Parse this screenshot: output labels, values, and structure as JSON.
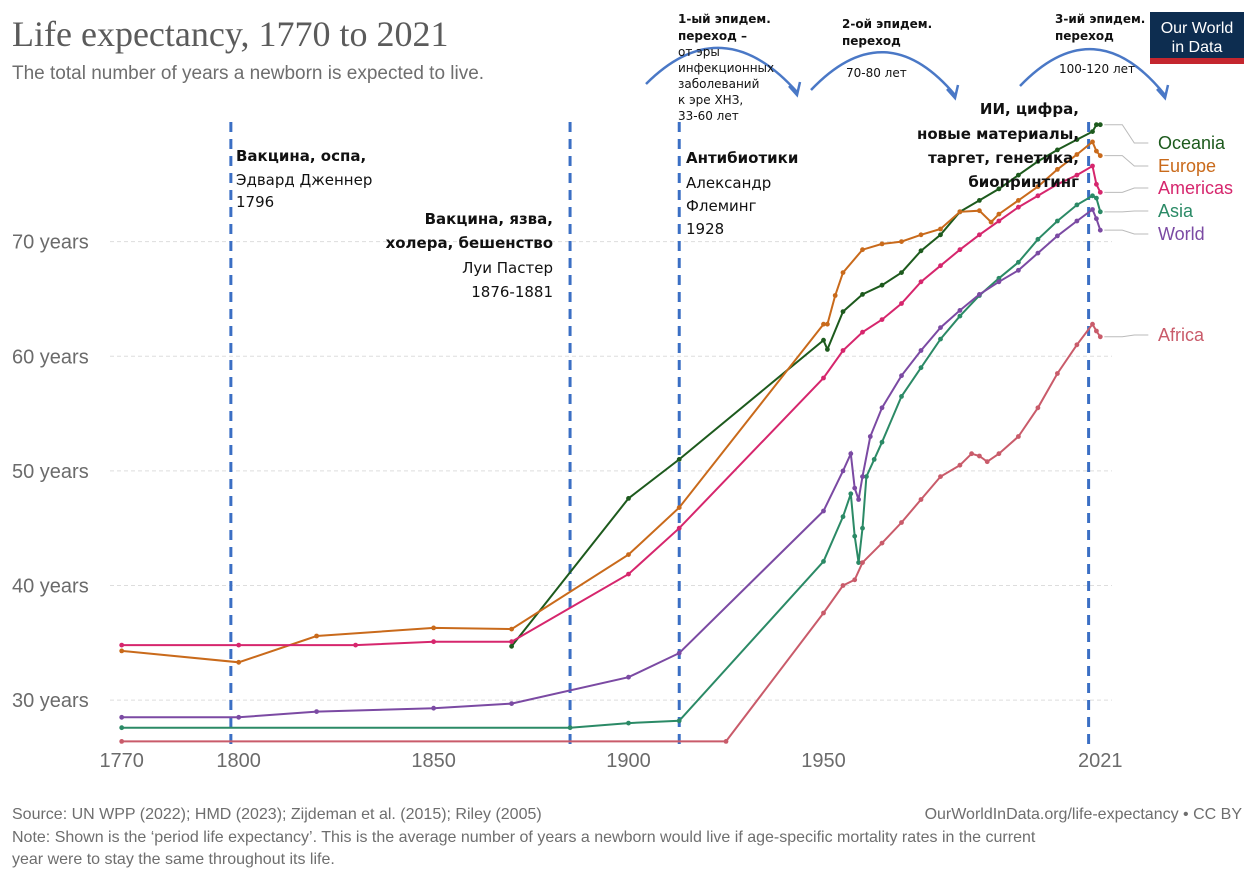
{
  "colors": {
    "Oceania": "#1d5a1d",
    "Europe": "#c96a1b",
    "Americas": "#d6266d",
    "Asia": "#2b8a66",
    "World": "#7b4aa3",
    "Africa": "#c95b6a",
    "logo_bg": "#0d2d50",
    "logo_stripe": "#c4262e",
    "annotation_line": "#3b6fc4"
  },
  "logo": {
    "line1": "Our World",
    "line2": "in Data"
  },
  "chart_data": {
    "type": "line",
    "title": "Life expectancy, 1770 to 2021",
    "subtitle": "The total number of years a newborn is expected to live.",
    "xlim": [
      1767,
      2024
    ],
    "ylim": [
      26,
      80
    ],
    "x_ticks": [
      {
        "value": 1770,
        "label": "1770"
      },
      {
        "value": 1800,
        "label": "1800"
      },
      {
        "value": 1850,
        "label": "1850"
      },
      {
        "value": 1900,
        "label": "1900"
      },
      {
        "value": 1950,
        "label": "1950"
      },
      {
        "value": 2021,
        "label": "2021"
      }
    ],
    "y_ticks": [
      {
        "value": 30,
        "label": "30 years"
      },
      {
        "value": 40,
        "label": "40 years"
      },
      {
        "value": 50,
        "label": "50 years"
      },
      {
        "value": 60,
        "label": "60 years"
      },
      {
        "value": 70,
        "label": "70 years"
      }
    ],
    "grid": "horizontal",
    "legend": "right, at line ends",
    "series": [
      {
        "name": "Oceania",
        "points": [
          [
            1870,
            34.7
          ],
          [
            1900,
            47.6
          ],
          [
            1913,
            51
          ],
          [
            1950,
            61.4
          ],
          [
            1951,
            60.6
          ],
          [
            1955,
            63.9
          ],
          [
            1960,
            65.4
          ],
          [
            1965,
            66.2
          ],
          [
            1970,
            67.3
          ],
          [
            1975,
            69.2
          ],
          [
            1980,
            70.6
          ],
          [
            1985,
            72.6
          ],
          [
            1990,
            73.6
          ],
          [
            1995,
            74.6
          ],
          [
            2000,
            75.8
          ],
          [
            2005,
            77
          ],
          [
            2010,
            78
          ],
          [
            2015,
            78.9
          ],
          [
            2019,
            79.6
          ],
          [
            2020,
            80.2
          ],
          [
            2021,
            80.2
          ]
        ]
      },
      {
        "name": "Europe",
        "points": [
          [
            1770,
            34.3
          ],
          [
            1800,
            33.3
          ],
          [
            1820,
            35.6
          ],
          [
            1850,
            36.3
          ],
          [
            1870,
            36.2
          ],
          [
            1900,
            42.7
          ],
          [
            1913,
            46.8
          ],
          [
            1950,
            62.8
          ],
          [
            1951,
            62.8
          ],
          [
            1953,
            65.3
          ],
          [
            1955,
            67.3
          ],
          [
            1960,
            69.3
          ],
          [
            1965,
            69.8
          ],
          [
            1970,
            70
          ],
          [
            1975,
            70.6
          ],
          [
            1980,
            71.1
          ],
          [
            1985,
            72.6
          ],
          [
            1990,
            72.7
          ],
          [
            1993,
            71.7
          ],
          [
            1995,
            72.4
          ],
          [
            2000,
            73.6
          ],
          [
            2005,
            74.8
          ],
          [
            2010,
            76.3
          ],
          [
            2015,
            77.6
          ],
          [
            2019,
            78.7
          ],
          [
            2020,
            77.9
          ],
          [
            2021,
            77.5
          ]
        ]
      },
      {
        "name": "Americas",
        "points": [
          [
            1770,
            34.8
          ],
          [
            1800,
            34.8
          ],
          [
            1830,
            34.8
          ],
          [
            1850,
            35.1
          ],
          [
            1870,
            35.1
          ],
          [
            1900,
            41
          ],
          [
            1913,
            45
          ],
          [
            1950,
            58.1
          ],
          [
            1955,
            60.5
          ],
          [
            1960,
            62.1
          ],
          [
            1965,
            63.2
          ],
          [
            1970,
            64.6
          ],
          [
            1975,
            66.5
          ],
          [
            1980,
            67.9
          ],
          [
            1985,
            69.3
          ],
          [
            1990,
            70.6
          ],
          [
            1995,
            71.8
          ],
          [
            2000,
            73
          ],
          [
            2005,
            74
          ],
          [
            2010,
            75
          ],
          [
            2015,
            75.8
          ],
          [
            2019,
            76.6
          ],
          [
            2020,
            75
          ],
          [
            2021,
            74.3
          ]
        ]
      },
      {
        "name": "Asia",
        "points": [
          [
            1770,
            27.6
          ],
          [
            1885,
            27.6
          ],
          [
            1900,
            28
          ],
          [
            1913,
            28.2
          ],
          [
            1950,
            42.1
          ],
          [
            1955,
            46
          ],
          [
            1957,
            48
          ],
          [
            1958,
            44.3
          ],
          [
            1959,
            42
          ],
          [
            1960,
            45
          ],
          [
            1961,
            49.5
          ],
          [
            1963,
            51
          ],
          [
            1965,
            52.5
          ],
          [
            1970,
            56.5
          ],
          [
            1975,
            59
          ],
          [
            1980,
            61.5
          ],
          [
            1985,
            63.5
          ],
          [
            1990,
            65.3
          ],
          [
            1995,
            66.8
          ],
          [
            2000,
            68.2
          ],
          [
            2005,
            70.2
          ],
          [
            2010,
            71.8
          ],
          [
            2015,
            73.2
          ],
          [
            2019,
            74
          ],
          [
            2020,
            73.8
          ],
          [
            2021,
            72.6
          ]
        ]
      },
      {
        "name": "World",
        "points": [
          [
            1770,
            28.5
          ],
          [
            1800,
            28.5
          ],
          [
            1820,
            29
          ],
          [
            1850,
            29.3
          ],
          [
            1870,
            29.7
          ],
          [
            1900,
            32
          ],
          [
            1913,
            34.1
          ],
          [
            1950,
            46.5
          ],
          [
            1955,
            50
          ],
          [
            1957,
            51.5
          ],
          [
            1958,
            48.5
          ],
          [
            1959,
            47.5
          ],
          [
            1960,
            49.5
          ],
          [
            1962,
            53
          ],
          [
            1965,
            55.5
          ],
          [
            1970,
            58.3
          ],
          [
            1975,
            60.5
          ],
          [
            1980,
            62.5
          ],
          [
            1985,
            64
          ],
          [
            1990,
            65.4
          ],
          [
            1995,
            66.5
          ],
          [
            2000,
            67.5
          ],
          [
            2005,
            69
          ],
          [
            2010,
            70.5
          ],
          [
            2015,
            71.8
          ],
          [
            2019,
            72.8
          ],
          [
            2020,
            72
          ],
          [
            2021,
            71
          ]
        ]
      },
      {
        "name": "Africa",
        "points": [
          [
            1770,
            26.4
          ],
          [
            1925,
            26.4
          ],
          [
            1950,
            37.6
          ],
          [
            1955,
            40
          ],
          [
            1958,
            40.5
          ],
          [
            1960,
            42
          ],
          [
            1965,
            43.7
          ],
          [
            1970,
            45.5
          ],
          [
            1975,
            47.5
          ],
          [
            1980,
            49.5
          ],
          [
            1985,
            50.5
          ],
          [
            1988,
            51.5
          ],
          [
            1990,
            51.3
          ],
          [
            1992,
            50.8
          ],
          [
            1995,
            51.5
          ],
          [
            2000,
            53
          ],
          [
            2005,
            55.5
          ],
          [
            2010,
            58.5
          ],
          [
            2015,
            61
          ],
          [
            2019,
            62.8
          ],
          [
            2020,
            62.2
          ],
          [
            2021,
            61.7
          ]
        ]
      }
    ]
  },
  "annotations": {
    "vaccine_smallpox": {
      "year": 1798,
      "title": "Вакцина, оспа,",
      "line1": "Эдвард Дженнер",
      "line2": "1796"
    },
    "vaccine_pasteur": {
      "year": 1885,
      "title1": "Вакцина, язва,",
      "title2": "холера, бешенство",
      "line1": "Луи Пастер",
      "line2": "1876-1881"
    },
    "antibiotics": {
      "year": 1913,
      "title": "Антибиотики",
      "line1": "Александр",
      "line2": "Флеминг",
      "line3": "1928"
    },
    "ai_digital": {
      "year": 2018,
      "line1": "ИИ, цифра,",
      "line2": "новые материалы,",
      "line3": "таргет, генетика,",
      "line4": "биопринтинг"
    }
  },
  "transitions": {
    "first": {
      "line1": "1-ый эпидем.",
      "line2": "переход –",
      "line3": "от эры",
      "line4": "инфекционных",
      "line5": "заболеваний",
      "line6": "к эре ХНЗ,",
      "line7": "33-60 лет"
    },
    "second": {
      "line1": "2-ой эпидем.",
      "line2": "переход",
      "line3": "70-80 лет"
    },
    "third": {
      "line1": "3-ий эпидем.",
      "line2": "переход",
      "line3": "100-120 лет"
    }
  },
  "footer": {
    "source": "Source: UN WPP (2022); HMD (2023); Zijdeman et al. (2015); Riley (2005)",
    "url": "OurWorldInData.org/life-expectancy • CC BY",
    "note1": "Note: Shown is the ‘period life expectancy’. This is the average number of years a newborn would live if age-specific mortality rates in the current",
    "note2": "year were to stay the same throughout its life."
  }
}
